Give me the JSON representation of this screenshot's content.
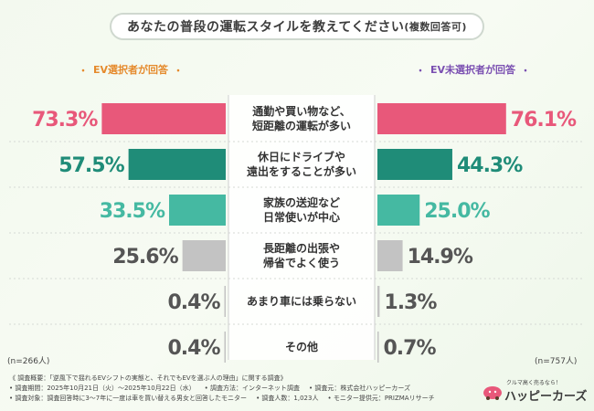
{
  "title": "あなたの普段の運転スタイルを教えてください",
  "title_note": "(複数回答可)",
  "groups": {
    "ev": {
      "label": "EV選択者が回答",
      "n": "(n=266人)",
      "accent": "#e58a2c"
    },
    "non_ev": {
      "label": "EV未選択者が回答",
      "n": "(n=757人)",
      "accent": "#7a4fb1"
    }
  },
  "notes": {
    "line1": "《 調査概要：「逆風下で揺れるEVシフトの実態と、それでもEVを選ぶ人の理由」に関する調査》",
    "line2a": "• 調査期間：2025年10月21日（火）〜2025年10月22日（水）",
    "line2b": "• 調査方法：インターネット調査",
    "line2c": "• 調査元：株式会社ハッピーカーズ",
    "line3a": "• 調査対象：調査回答時に3〜7年に一度は車を買い替える男女と回答したモニター",
    "line3b": "• 調査人数：1,023人",
    "line3c": "• モニター提供元：PRIZMAリサーチ"
  },
  "logo": {
    "tagline": "クルマ高く売るなら！",
    "name": "ハッピーカーズ"
  },
  "chart_data": {
    "type": "bar",
    "orientation": "horizontal-butterfly",
    "unit": "%",
    "categories": [
      [
        "通勤や買い物など、",
        "短距離の運転が多い"
      ],
      [
        "休日にドライブや",
        "遠出をすることが多い"
      ],
      [
        "家族の送迎など",
        "日常使いが中心"
      ],
      [
        "長距離の出張や",
        "帰省でよく使う"
      ],
      [
        "あまり車には乗らない"
      ],
      [
        "その他"
      ]
    ],
    "series": [
      {
        "name": "EV選択者が回答",
        "values": [
          73.3,
          57.5,
          33.5,
          25.6,
          0.4,
          0.4
        ]
      },
      {
        "name": "EV未選択者が回答",
        "values": [
          76.1,
          44.3,
          25.0,
          14.9,
          1.3,
          0.7
        ]
      }
    ],
    "bar_colors": [
      "#e8587a",
      "#1f8c78",
      "#45b9a2",
      "#c3c3c3",
      "#c3c3c3",
      "#c3c3c3"
    ],
    "label_colors": [
      "#e8587a",
      "#1f8c78",
      "#45b9a2",
      "#555555",
      "#555555",
      "#555555"
    ],
    "value_labels": [
      [
        "73.3%",
        "57.5%",
        "33.5%",
        "25.6%",
        "0.4%",
        "0.4%"
      ],
      [
        "76.1%",
        "44.3%",
        "25.0%",
        "14.9%",
        "1.3%",
        "0.7%"
      ]
    ],
    "xlim": [
      0,
      100
    ]
  }
}
